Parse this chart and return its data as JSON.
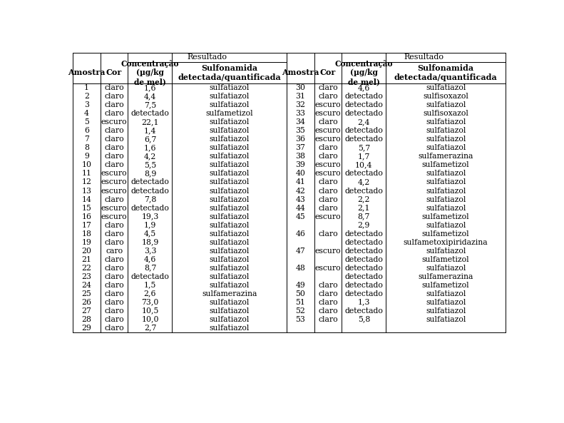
{
  "resultado_label": "Resultado",
  "left_data": [
    [
      "1",
      "claro",
      "1,6",
      "sulfatiazol"
    ],
    [
      "2",
      "claro",
      "4,4",
      "sulfatiazol"
    ],
    [
      "3",
      "claro",
      "7,5",
      "sulfatiazol"
    ],
    [
      "4",
      "claro",
      "detectado",
      "sulfametizol"
    ],
    [
      "5",
      "escuro",
      "22,1",
      "sulfatiazol"
    ],
    [
      "6",
      "claro",
      "1,4",
      "sulfatiazol"
    ],
    [
      "7",
      "claro",
      "6,7",
      "sulfatiazol"
    ],
    [
      "8",
      "claro",
      "1,6",
      "sulfatiazol"
    ],
    [
      "9",
      "claro",
      "4,2",
      "sulfatiazol"
    ],
    [
      "10",
      "claro",
      "5,5",
      "sulfatiazol"
    ],
    [
      "11",
      "escuro",
      "8,9",
      "sulfatiazol"
    ],
    [
      "12",
      "escuro",
      "detectado",
      "sulfatiazol"
    ],
    [
      "13",
      "escuro",
      "detectado",
      "sulfatiazol"
    ],
    [
      "14",
      "claro",
      "7,8",
      "sulfatiazol"
    ],
    [
      "15",
      "escuro",
      "detectado",
      "sulfatiazol"
    ],
    [
      "16",
      "escuro",
      "19,3",
      "sulfatiazol"
    ],
    [
      "17",
      "claro",
      "1,9",
      "sulfatiazol"
    ],
    [
      "18",
      "claro",
      "4,5",
      "sulfatiazol"
    ],
    [
      "19",
      "claro",
      "18,9",
      "sulfatiazol"
    ],
    [
      "20",
      "caro",
      "3,3",
      "sulfatiazol"
    ],
    [
      "21",
      "claro",
      "4,6",
      "sulfatiazol"
    ],
    [
      "22",
      "claro",
      "8,7",
      "sulfatiazol"
    ],
    [
      "23",
      "claro",
      "detectado",
      "sulfatiazol"
    ],
    [
      "24",
      "claro",
      "1,5",
      "sulfatiazol"
    ],
    [
      "25",
      "claro",
      "2,6",
      "sulfamerazina"
    ],
    [
      "26",
      "claro",
      "73,0",
      "sulfatiazol"
    ],
    [
      "27",
      "claro",
      "10,5",
      "sulfatiazol"
    ],
    [
      "28",
      "claro",
      "10,0",
      "sulfatiazol"
    ],
    [
      "29",
      "claro",
      "2,7",
      "sulfatiazol"
    ]
  ],
  "right_data": [
    [
      "30",
      "claro",
      "4,6",
      "sulfatiazol",
      false
    ],
    [
      "31",
      "claro",
      "detectado",
      "sulfisoxazol",
      false
    ],
    [
      "32",
      "escuro",
      "detectado",
      "sulfatiazol",
      false
    ],
    [
      "33",
      "escuro",
      "detectado",
      "sulfisoxazol",
      false
    ],
    [
      "34",
      "claro",
      "2,4",
      "sulfatiazol",
      false
    ],
    [
      "35",
      "escuro",
      "detectado",
      "sulfatiazol",
      false
    ],
    [
      "36",
      "escuro",
      "detectado",
      "sulfatiazol",
      false
    ],
    [
      "37",
      "claro",
      "5,7",
      "sulfatiazol",
      false
    ],
    [
      "38",
      "claro",
      "1,7",
      "sulfamerazina",
      false
    ],
    [
      "39",
      "escuro",
      "10,4",
      "sulfametizol",
      false
    ],
    [
      "40",
      "escuro",
      "detectado",
      "sulfatiazol",
      false
    ],
    [
      "41",
      "claro",
      "4,2",
      "sulfatiazol",
      false
    ],
    [
      "42",
      "claro",
      "detectado",
      "sulfatiazol",
      false
    ],
    [
      "43",
      "claro",
      "2,2",
      "sulfatiazol",
      false
    ],
    [
      "44",
      "claro",
      "2,1",
      "sulfatiazol",
      false
    ],
    [
      "45",
      "escuro",
      "8,7",
      "sulfametizol",
      false
    ],
    [
      "",
      "",
      "2,9",
      "sulfatiazol",
      true
    ],
    [
      "46",
      "claro",
      "detectado",
      "sulfametizol",
      false
    ],
    [
      "",
      "",
      "detectado",
      "sulfametoxipiridazina",
      true
    ],
    [
      "47",
      "escuro",
      "detectado",
      "sulfatiazol",
      false
    ],
    [
      "",
      "",
      "detectado",
      "sulfametizol",
      true
    ],
    [
      "48",
      "escuro",
      "detectado",
      "sulfatiazol",
      false
    ],
    [
      "",
      "",
      "detectado",
      "sulfamerazina",
      true
    ],
    [
      "49",
      "claro",
      "detectado",
      "sulfametizol",
      false
    ],
    [
      "50",
      "claro",
      "detectado",
      "sulfatiazol",
      false
    ],
    [
      "51",
      "claro",
      "1,3",
      "sulfatiazol",
      false
    ],
    [
      "52",
      "claro",
      "detectado",
      "sulfatiazol",
      false
    ],
    [
      "53",
      "claro",
      "5,8",
      "sulfatiazol",
      false
    ]
  ],
  "bg_color": "#ffffff",
  "text_color": "#000000",
  "lw": 0.7
}
